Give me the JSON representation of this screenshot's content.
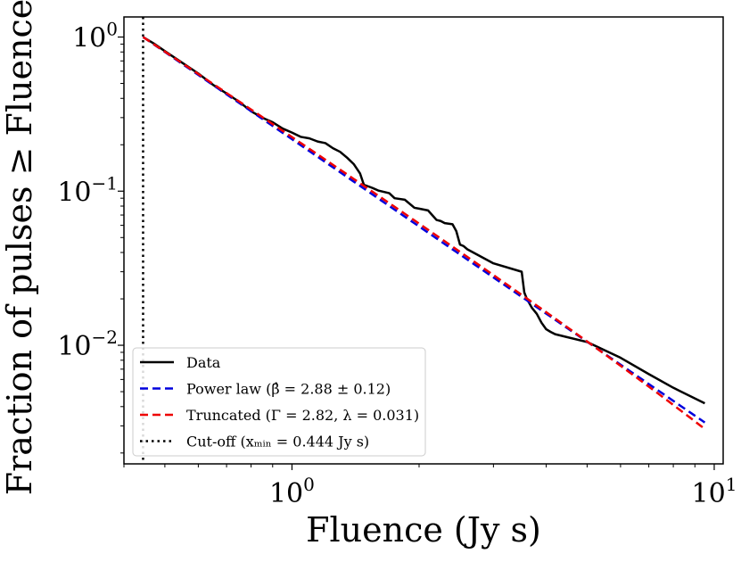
{
  "chart_data": {
    "type": "line",
    "xscale": "log",
    "yscale": "log",
    "xlim": [
      0.4,
      10.5
    ],
    "ylim": [
      0.0017,
      1.35
    ],
    "xlabel": "Fluence (Jy s)",
    "ylabel": "Fraction of pulses ≥ Fluence",
    "x_ticks": [
      {
        "value": 1,
        "base": "10",
        "exp": "0"
      },
      {
        "value": 10,
        "base": "10",
        "exp": "1"
      }
    ],
    "y_ticks": [
      {
        "value": 1,
        "base": "10",
        "exp": "0"
      },
      {
        "value": 0.1,
        "base": "10",
        "exp": "−1"
      },
      {
        "value": 0.01,
        "base": "10",
        "exp": "−2"
      }
    ],
    "legend_position": "bottom-left",
    "series": [
      {
        "name": "Data",
        "style": "solid",
        "color": "#000000",
        "label_main": "Data",
        "label_math": "",
        "x": [
          0.444,
          0.47,
          0.5,
          0.55,
          0.6,
          0.65,
          0.7,
          0.75,
          0.8,
          0.85,
          0.9,
          0.95,
          1.0,
          1.05,
          1.1,
          1.15,
          1.2,
          1.25,
          1.3,
          1.35,
          1.4,
          1.45,
          1.48,
          1.55,
          1.6,
          1.7,
          1.75,
          1.85,
          1.95,
          2.0,
          2.1,
          2.2,
          2.25,
          2.3,
          2.4,
          2.45,
          2.5,
          2.55,
          2.6,
          3.0,
          3.5,
          3.55,
          3.6,
          3.7,
          3.8,
          3.9,
          4.0,
          4.1,
          4.2,
          5.0,
          6.0,
          7.0,
          8.0,
          9.5
        ],
        "y": [
          1.0,
          0.91,
          0.81,
          0.68,
          0.58,
          0.49,
          0.43,
          0.38,
          0.33,
          0.3,
          0.28,
          0.255,
          0.24,
          0.225,
          0.22,
          0.21,
          0.205,
          0.19,
          0.18,
          0.165,
          0.15,
          0.13,
          0.11,
          0.105,
          0.101,
          0.097,
          0.09,
          0.088,
          0.078,
          0.077,
          0.075,
          0.065,
          0.064,
          0.062,
          0.061,
          0.055,
          0.045,
          0.044,
          0.042,
          0.034,
          0.03,
          0.022,
          0.02,
          0.0175,
          0.016,
          0.014,
          0.0127,
          0.0122,
          0.0118,
          0.0105,
          0.0083,
          0.0065,
          0.0053,
          0.0042
        ]
      },
      {
        "name": "Power law",
        "style": "dashed",
        "color": "#0000dd",
        "label_main": "Power law",
        "label_math": "(β̂ = 2.88 ± 0.12)",
        "beta": 2.88,
        "xmin": 0.444,
        "x_end": 9.5
      },
      {
        "name": "Truncated",
        "style": "dashed",
        "color": "#ee0000",
        "label_main": "Truncated",
        "label_math": "(Γ = 2.82, λ = 0.031)",
        "gamma": 2.82,
        "lambda": 0.031,
        "xmin": 0.444,
        "x_end": 9.5
      },
      {
        "name": "Cut-off",
        "style": "dotted",
        "color": "#000000",
        "label_main": "Cut-off",
        "label_math": "(xₘᵢₙ = 0.444 Jy s)",
        "x": 0.444
      }
    ]
  }
}
